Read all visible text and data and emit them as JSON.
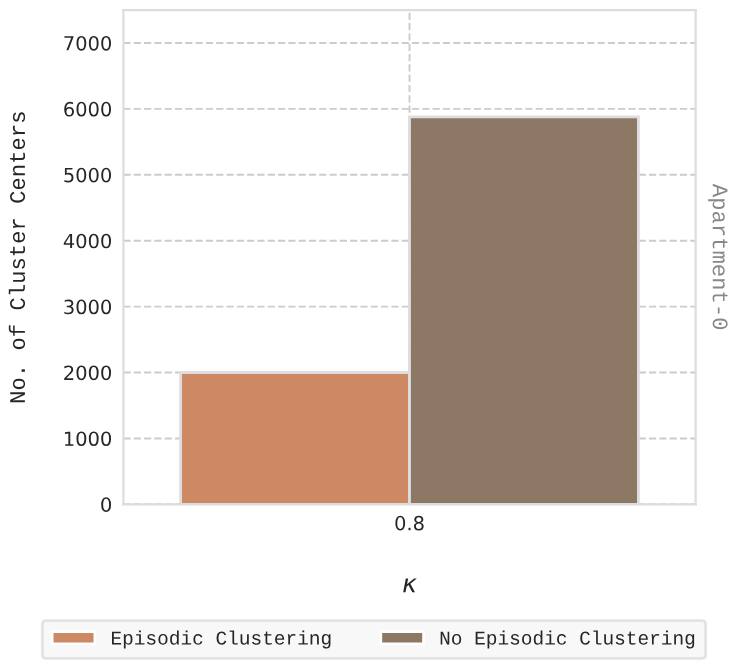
{
  "chart_data": {
    "type": "bar",
    "categories": [
      "0.8"
    ],
    "series": [
      {
        "name": "Episodic Clustering",
        "color": "#cd8963",
        "values": [
          2000
        ]
      },
      {
        "name": "No Episodic Clustering",
        "color": "#8c7864",
        "values": [
          5880
        ]
      }
    ],
    "xlabel": "κ",
    "ylabel": "No. of Cluster Centers",
    "annotations": [
      "Apartment-0"
    ],
    "ylim": [
      0,
      7500
    ],
    "yticks": [
      0,
      1000,
      2000,
      3000,
      4000,
      5000,
      6000,
      7000
    ],
    "grid": true,
    "legend": "bottom"
  }
}
